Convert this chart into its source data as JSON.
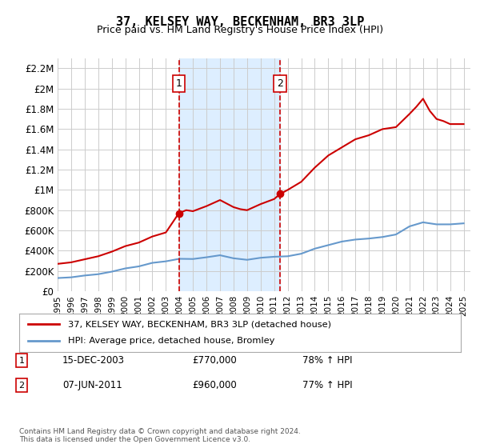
{
  "title": "37, KELSEY WAY, BECKENHAM, BR3 3LP",
  "subtitle": "Price paid vs. HM Land Registry's House Price Index (HPI)",
  "legend_line1": "37, KELSEY WAY, BECKENHAM, BR3 3LP (detached house)",
  "legend_line2": "HPI: Average price, detached house, Bromley",
  "footnote": "Contains HM Land Registry data © Crown copyright and database right 2024.\nThis data is licensed under the Open Government Licence v3.0.",
  "transaction1_label": "1",
  "transaction1_date": "15-DEC-2003",
  "transaction1_price": "£770,000",
  "transaction1_hpi": "78% ↑ HPI",
  "transaction2_label": "2",
  "transaction2_date": "07-JUN-2011",
  "transaction2_price": "£960,000",
  "transaction2_hpi": "77% ↑ HPI",
  "ylim": [
    0,
    2300000
  ],
  "yticks": [
    0,
    200000,
    400000,
    600000,
    800000,
    1000000,
    1200000,
    1400000,
    1600000,
    1800000,
    2000000,
    2200000
  ],
  "ytick_labels": [
    "£0",
    "£200K",
    "£400K",
    "£600K",
    "£800K",
    "£1M",
    "£1.2M",
    "£1.4M",
    "£1.6M",
    "£1.8M",
    "£2M",
    "£2.2M"
  ],
  "xlim_start": 1995.0,
  "xlim_end": 2025.5,
  "transaction1_x": 2003.96,
  "transaction1_y": 770000,
  "transaction2_x": 2011.44,
  "transaction2_y": 960000,
  "red_line_color": "#cc0000",
  "blue_line_color": "#6699cc",
  "shaded_color": "#ddeeff",
  "grid_color": "#cccccc",
  "background_color": "#ffffff",
  "hpi_years": [
    1995.0,
    1996.0,
    1997.0,
    1998.0,
    1999.0,
    2000.0,
    2001.0,
    2002.0,
    2003.0,
    2004.0,
    2005.0,
    2006.0,
    2007.0,
    2008.0,
    2009.0,
    2010.0,
    2011.0,
    2012.0,
    2013.0,
    2014.0,
    2015.0,
    2016.0,
    2017.0,
    2018.0,
    2019.0,
    2020.0,
    2021.0,
    2022.0,
    2023.0,
    2024.0,
    2025.0
  ],
  "hpi_values": [
    130000,
    137000,
    155000,
    168000,
    193000,
    225000,
    245000,
    280000,
    295000,
    320000,
    318000,
    335000,
    355000,
    325000,
    310000,
    330000,
    340000,
    345000,
    370000,
    420000,
    455000,
    490000,
    510000,
    520000,
    535000,
    560000,
    640000,
    680000,
    660000,
    660000,
    670000
  ],
  "hpi_smooth": true,
  "red_years": [
    1995.0,
    1996.0,
    1997.0,
    1998.0,
    1999.0,
    2000.0,
    2001.0,
    2002.0,
    2003.0,
    2003.96,
    2004.5,
    2005.0,
    2006.0,
    2007.0,
    2008.0,
    2008.5,
    2009.0,
    2010.0,
    2011.0,
    2011.44,
    2012.0,
    2013.0,
    2014.0,
    2015.0,
    2016.0,
    2017.0,
    2017.5,
    2018.0,
    2019.0,
    2020.0,
    2021.0,
    2021.5,
    2022.0,
    2022.5,
    2023.0,
    2023.5,
    2024.0,
    2024.5,
    2025.0
  ],
  "red_values": [
    270000,
    285000,
    315000,
    345000,
    390000,
    445000,
    480000,
    540000,
    580000,
    770000,
    800000,
    790000,
    840000,
    900000,
    830000,
    810000,
    800000,
    860000,
    910000,
    960000,
    1000000,
    1080000,
    1220000,
    1340000,
    1420000,
    1500000,
    1520000,
    1540000,
    1600000,
    1620000,
    1750000,
    1820000,
    1900000,
    1780000,
    1700000,
    1680000,
    1650000,
    1650000,
    1650000
  ]
}
